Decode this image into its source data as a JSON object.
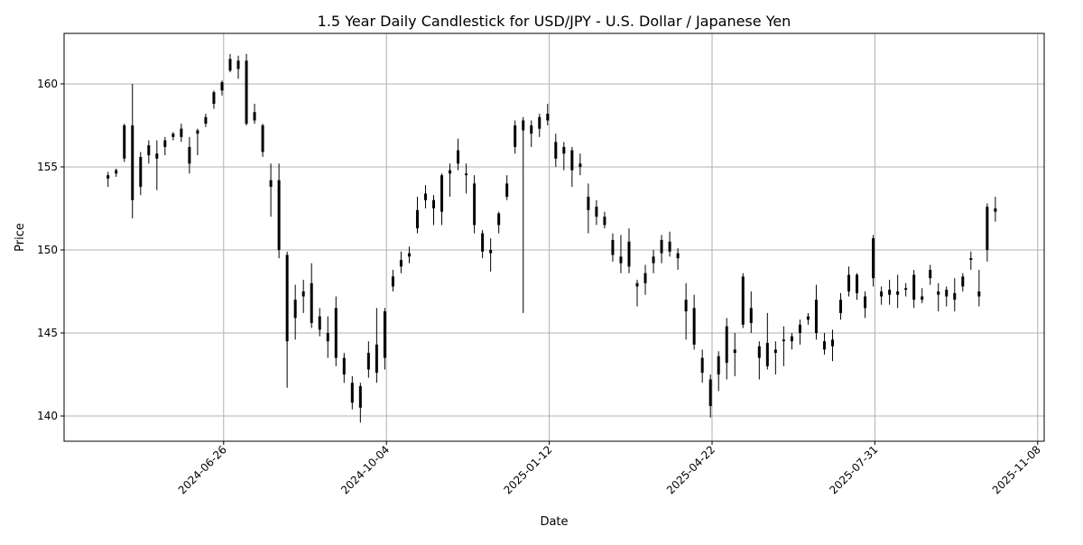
{
  "chart_data": {
    "type": "candlestick",
    "title": "1.5 Year Daily Candlestick for USD/JPY - U.S. Dollar / Japanese Yen",
    "xlabel": "Date",
    "ylabel": "Price",
    "xlim": [
      "2024-03-20",
      "2025-11-12"
    ],
    "ylim": [
      138.48,
      163.04
    ],
    "x_ticks": [
      "2024-06-26",
      "2024-10-04",
      "2025-01-12",
      "2025-04-22",
      "2025-07-31",
      "2025-11-08"
    ],
    "y_ticks": [
      140,
      145,
      150,
      155,
      160
    ],
    "grid": true,
    "colors": {
      "candle": "#000000",
      "grid": "#b0b0b0"
    },
    "candle_fields": [
      "date",
      "open",
      "high",
      "low",
      "close"
    ],
    "candles": [
      [
        "2024-04-16",
        154.3,
        154.7,
        153.8,
        154.5
      ],
      [
        "2024-04-21",
        154.6,
        154.9,
        154.4,
        154.8
      ],
      [
        "2024-04-26",
        155.5,
        157.6,
        155.3,
        157.5
      ],
      [
        "2024-05-01",
        157.5,
        160.0,
        151.9,
        153.0
      ],
      [
        "2024-05-06",
        153.8,
        155.9,
        153.3,
        155.6
      ],
      [
        "2024-05-11",
        155.7,
        156.6,
        155.2,
        156.3
      ],
      [
        "2024-05-16",
        155.5,
        156.6,
        153.6,
        155.8
      ],
      [
        "2024-05-21",
        156.2,
        156.8,
        155.7,
        156.6
      ],
      [
        "2024-05-26",
        156.8,
        157.1,
        156.6,
        157.0
      ],
      [
        "2024-05-31",
        157.3,
        157.6,
        156.5,
        156.8
      ],
      [
        "2024-06-05",
        156.2,
        156.8,
        154.6,
        155.2
      ],
      [
        "2024-06-10",
        157.0,
        157.3,
        155.7,
        157.2
      ],
      [
        "2024-06-15",
        157.6,
        158.2,
        157.4,
        158.0
      ],
      [
        "2024-06-20",
        158.8,
        159.6,
        158.5,
        159.5
      ],
      [
        "2024-06-25",
        159.6,
        160.2,
        159.3,
        160.1
      ],
      [
        "2024-06-30",
        160.8,
        161.8,
        160.7,
        161.5
      ],
      [
        "2024-07-05",
        161.4,
        161.7,
        160.3,
        160.9
      ],
      [
        "2024-07-10",
        161.4,
        161.8,
        157.5,
        157.6
      ],
      [
        "2024-07-15",
        157.8,
        158.8,
        157.6,
        158.3
      ],
      [
        "2024-07-20",
        157.5,
        157.6,
        155.6,
        155.9
      ],
      [
        "2024-07-25",
        154.2,
        155.2,
        152.0,
        153.8
      ],
      [
        "2024-07-30",
        154.2,
        155.2,
        149.5,
        150.0
      ],
      [
        "2024-08-04",
        149.7,
        149.9,
        141.7,
        144.5
      ],
      [
        "2024-08-09",
        145.9,
        147.9,
        144.6,
        147.0
      ],
      [
        "2024-08-14",
        147.5,
        148.2,
        146.2,
        147.2
      ],
      [
        "2024-08-19",
        148.0,
        149.2,
        145.3,
        145.6
      ],
      [
        "2024-08-24",
        146.0,
        146.5,
        144.8,
        145.2
      ],
      [
        "2024-08-29",
        144.5,
        146.0,
        143.5,
        145.0
      ],
      [
        "2024-09-03",
        146.5,
        147.2,
        143.0,
        143.5
      ],
      [
        "2024-09-08",
        143.5,
        143.8,
        142.0,
        142.5
      ],
      [
        "2024-09-13",
        142.0,
        142.4,
        140.4,
        140.8
      ],
      [
        "2024-09-18",
        140.5,
        142.0,
        139.6,
        141.8
      ],
      [
        "2024-09-23",
        142.8,
        144.5,
        142.3,
        143.8
      ],
      [
        "2024-09-28",
        144.3,
        146.5,
        142.0,
        142.6
      ],
      [
        "2024-10-03",
        143.5,
        146.5,
        142.8,
        146.3
      ],
      [
        "2024-10-08",
        147.8,
        148.8,
        147.5,
        148.4
      ],
      [
        "2024-10-13",
        149.0,
        149.9,
        148.6,
        149.4
      ],
      [
        "2024-10-18",
        149.8,
        150.2,
        149.2,
        149.6
      ],
      [
        "2024-10-23",
        151.3,
        153.2,
        151.0,
        152.4
      ],
      [
        "2024-10-28",
        153.0,
        153.9,
        152.5,
        153.4
      ],
      [
        "2024-11-02",
        153.0,
        153.3,
        151.5,
        152.5
      ],
      [
        "2024-11-07",
        152.3,
        154.6,
        151.5,
        154.5
      ],
      [
        "2024-11-12",
        154.6,
        155.2,
        153.2,
        154.8
      ],
      [
        "2024-11-17",
        156.0,
        156.7,
        154.8,
        155.2
      ],
      [
        "2024-11-22",
        154.5,
        155.2,
        153.4,
        154.6
      ],
      [
        "2024-11-27",
        154.0,
        154.5,
        151.0,
        151.5
      ],
      [
        "2024-12-02",
        151.0,
        151.2,
        149.5,
        149.9
      ],
      [
        "2024-12-07",
        149.8,
        150.7,
        148.7,
        150.0
      ],
      [
        "2024-12-12",
        151.5,
        152.3,
        151.0,
        152.2
      ],
      [
        "2024-12-17",
        153.2,
        154.5,
        153.0,
        154.0
      ],
      [
        "2024-12-22",
        156.2,
        157.8,
        155.8,
        157.5
      ],
      [
        "2024-12-27",
        157.2,
        158.0,
        146.2,
        157.8
      ],
      [
        "2025-01-01",
        157.5,
        157.8,
        156.2,
        157.0
      ],
      [
        "2025-01-06",
        157.3,
        158.2,
        156.8,
        158.0
      ],
      [
        "2025-01-11",
        158.2,
        158.8,
        157.5,
        157.8
      ],
      [
        "2025-01-16",
        156.5,
        157.0,
        155.0,
        155.5
      ],
      [
        "2025-01-21",
        155.8,
        156.5,
        154.8,
        156.2
      ],
      [
        "2025-01-26",
        156.0,
        156.2,
        153.8,
        154.8
      ],
      [
        "2025-01-31",
        155.2,
        155.8,
        154.5,
        155.0
      ],
      [
        "2025-02-05",
        153.2,
        154.0,
        151.0,
        152.4
      ],
      [
        "2025-02-10",
        152.0,
        153.0,
        151.5,
        152.6
      ],
      [
        "2025-02-15",
        152.0,
        152.3,
        151.3,
        151.5
      ],
      [
        "2025-02-20",
        150.6,
        151.0,
        149.3,
        149.7
      ],
      [
        "2025-02-25",
        149.6,
        150.9,
        148.6,
        149.2
      ],
      [
        "2025-03-02",
        150.5,
        151.3,
        148.6,
        149.0
      ],
      [
        "2025-03-07",
        148.0,
        148.2,
        146.6,
        147.8
      ],
      [
        "2025-03-12",
        148.0,
        149.1,
        147.3,
        148.6
      ],
      [
        "2025-03-17",
        149.2,
        150.0,
        148.6,
        149.6
      ],
      [
        "2025-03-22",
        149.8,
        150.9,
        149.2,
        150.6
      ],
      [
        "2025-03-27",
        150.5,
        151.1,
        149.6,
        149.9
      ],
      [
        "2025-04-01",
        149.8,
        150.1,
        148.8,
        149.5
      ],
      [
        "2025-04-06",
        147.0,
        148.0,
        144.6,
        146.3
      ],
      [
        "2025-04-11",
        146.5,
        147.3,
        144.0,
        144.3
      ],
      [
        "2025-04-16",
        143.5,
        144.0,
        142.0,
        142.6
      ],
      [
        "2025-04-21",
        142.2,
        142.5,
        139.9,
        140.6
      ],
      [
        "2025-04-26",
        142.5,
        143.9,
        141.5,
        143.6
      ],
      [
        "2025-05-01",
        143.2,
        145.9,
        142.2,
        145.4
      ],
      [
        "2025-05-06",
        144.0,
        145.0,
        142.4,
        143.8
      ],
      [
        "2025-05-11",
        145.5,
        148.6,
        145.3,
        148.4
      ],
      [
        "2025-05-16",
        146.5,
        147.5,
        145.0,
        145.6
      ],
      [
        "2025-05-21",
        144.2,
        144.5,
        142.2,
        143.5
      ],
      [
        "2025-05-26",
        143.0,
        146.2,
        142.8,
        144.4
      ],
      [
        "2025-05-31",
        143.8,
        144.5,
        142.5,
        144.0
      ],
      [
        "2025-06-05",
        144.5,
        145.4,
        143.0,
        144.6
      ],
      [
        "2025-06-10",
        144.5,
        145.0,
        144.0,
        144.8
      ],
      [
        "2025-06-15",
        145.0,
        145.8,
        144.3,
        145.5
      ],
      [
        "2025-06-20",
        145.8,
        146.2,
        145.5,
        146.0
      ],
      [
        "2025-06-25",
        147.0,
        147.9,
        144.6,
        145.0
      ],
      [
        "2025-06-30",
        144.5,
        145.0,
        143.7,
        144.0
      ],
      [
        "2025-07-05",
        144.2,
        145.2,
        143.3,
        144.6
      ],
      [
        "2025-07-10",
        146.2,
        147.4,
        145.8,
        147.0
      ],
      [
        "2025-07-15",
        147.5,
        149.0,
        147.2,
        148.5
      ],
      [
        "2025-07-20",
        148.5,
        148.6,
        147.0,
        147.4
      ],
      [
        "2025-07-25",
        146.5,
        147.5,
        145.9,
        147.2
      ],
      [
        "2025-07-30",
        148.3,
        150.9,
        147.8,
        150.7
      ],
      [
        "2025-08-04",
        147.5,
        147.8,
        146.7,
        147.2
      ],
      [
        "2025-08-09",
        147.3,
        148.2,
        146.7,
        147.6
      ],
      [
        "2025-08-14",
        147.5,
        148.5,
        146.5,
        147.3
      ],
      [
        "2025-08-19",
        147.6,
        148.0,
        147.2,
        147.7
      ],
      [
        "2025-08-24",
        147.0,
        148.8,
        146.5,
        148.5
      ],
      [
        "2025-08-29",
        147.2,
        147.7,
        146.8,
        147.0
      ],
      [
        "2025-09-03",
        148.3,
        149.1,
        147.9,
        148.8
      ],
      [
        "2025-09-08",
        147.5,
        148.0,
        146.3,
        147.3
      ],
      [
        "2025-09-13",
        147.2,
        147.8,
        146.6,
        147.6
      ],
      [
        "2025-09-18",
        147.4,
        148.3,
        146.3,
        147.0
      ],
      [
        "2025-09-23",
        147.8,
        148.6,
        147.5,
        148.4
      ],
      [
        "2025-09-28",
        149.5,
        149.9,
        148.8,
        149.4
      ],
      [
        "2025-10-03",
        147.5,
        148.8,
        146.6,
        147.2
      ],
      [
        "2025-10-08",
        150.0,
        152.8,
        149.3,
        152.6
      ],
      [
        "2025-10-13",
        152.5,
        153.2,
        151.7,
        152.3
      ]
    ]
  }
}
